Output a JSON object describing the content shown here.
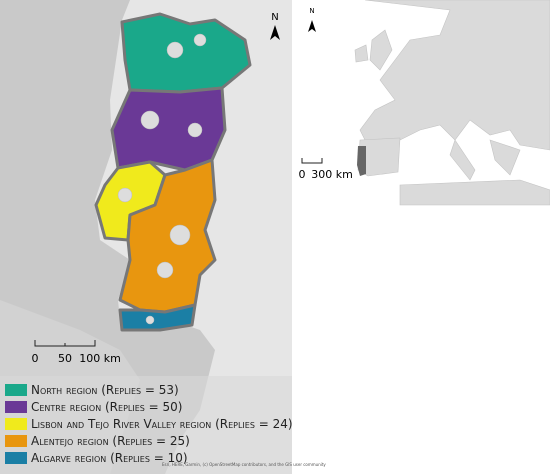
{
  "portugal_map": {
    "north_arrow": "N",
    "scale_labels": [
      "0",
      "50",
      "100 km"
    ],
    "attribution": "Esri, HERE, Garmin, (c) OpenStreetMap contributors, and the GIS user community",
    "legend": [
      {
        "label": "North region (Replies = 53)",
        "color": "#1aa88a"
      },
      {
        "label": "Centre region (Replies = 50)",
        "color": "#6a3996"
      },
      {
        "label": "Lisbon and Tejo River Valley region (Replies = 24)",
        "color": "#f0ea1c"
      },
      {
        "label": "Alentejo region (Replies = 25)",
        "color": "#e8960f"
      },
      {
        "label": "Algarve region (Replies = 10)",
        "color": "#1b7fa5"
      }
    ]
  },
  "europe_map": {
    "north_arrow": "N",
    "scale_labels": [
      "0",
      "300 km"
    ]
  }
}
